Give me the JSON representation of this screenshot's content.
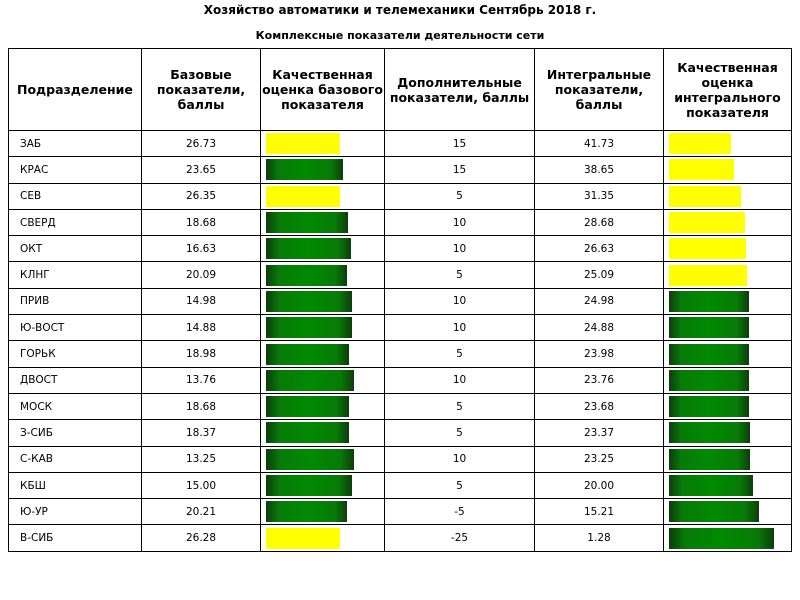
{
  "title": "Хозяйство автоматики и телемеханики Сентябрь 2018 г.",
  "subtitle": "Комплексные показатели деятельности сети",
  "colors": {
    "yellow": "#ffff00",
    "green": "#008a00"
  },
  "headers": [
    "Подразделение",
    "Базовые показатели, баллы",
    "Качественная оценка базового показателя",
    "Дополнительные показатели, баллы",
    "Интегральные показатели, баллы",
    "Качественная оценка интегрального показателя"
  ],
  "rows": [
    {
      "name": "ЗАБ",
      "base": "26.73",
      "base_q": "yellow",
      "add": "15",
      "integral": "41.73",
      "int_q": "yellow"
    },
    {
      "name": "КРАС",
      "base": "23.65",
      "base_q": "green",
      "add": "15",
      "integral": "38.65",
      "int_q": "yellow"
    },
    {
      "name": "СЕВ",
      "base": "26.35",
      "base_q": "yellow",
      "add": "5",
      "integral": "31.35",
      "int_q": "yellow"
    },
    {
      "name": "СВЕРД",
      "base": "18.68",
      "base_q": "green",
      "add": "10",
      "integral": "28.68",
      "int_q": "yellow"
    },
    {
      "name": "ОКТ",
      "base": "16.63",
      "base_q": "green",
      "add": "10",
      "integral": "26.63",
      "int_q": "yellow"
    },
    {
      "name": "КЛНГ",
      "base": "20.09",
      "base_q": "green",
      "add": "5",
      "integral": "25.09",
      "int_q": "yellow"
    },
    {
      "name": "ПРИВ",
      "base": "14.98",
      "base_q": "green",
      "add": "10",
      "integral": "24.98",
      "int_q": "green"
    },
    {
      "name": "Ю-ВОСТ",
      "base": "14.88",
      "base_q": "green",
      "add": "10",
      "integral": "24.88",
      "int_q": "green"
    },
    {
      "name": "ГОРЬК",
      "base": "18.98",
      "base_q": "green",
      "add": "5",
      "integral": "23.98",
      "int_q": "green"
    },
    {
      "name": "ДВОСТ",
      "base": "13.76",
      "base_q": "green",
      "add": "10",
      "integral": "23.76",
      "int_q": "green"
    },
    {
      "name": "МОСК",
      "base": "18.68",
      "base_q": "green",
      "add": "5",
      "integral": "23.68",
      "int_q": "green"
    },
    {
      "name": "З-СИБ",
      "base": "18.37",
      "base_q": "green",
      "add": "5",
      "integral": "23.37",
      "int_q": "green"
    },
    {
      "name": "С-КАВ",
      "base": "13.25",
      "base_q": "green",
      "add": "10",
      "integral": "23.25",
      "int_q": "green"
    },
    {
      "name": "КБШ",
      "base": "15.00",
      "base_q": "green",
      "add": "5",
      "integral": "20.00",
      "int_q": "green"
    },
    {
      "name": "Ю-УР",
      "base": "20.21",
      "base_q": "green",
      "add": "-5",
      "integral": "15.21",
      "int_q": "green"
    },
    {
      "name": "В-СИБ",
      "base": "26.28",
      "base_q": "yellow",
      "add": "-25",
      "integral": "1.28",
      "int_q": "green"
    }
  ]
}
